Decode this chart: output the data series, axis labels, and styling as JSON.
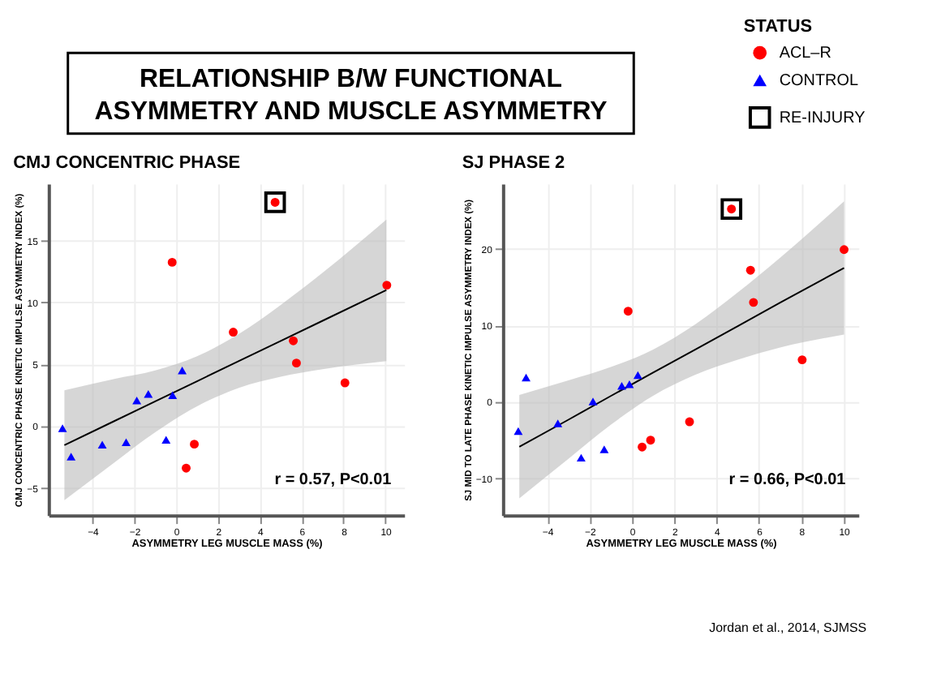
{
  "chart_data": [
    {
      "type": "other",
      "title": "RELATIONSHIP B/W FUNCTIONAL\nASYMMETRY AND MUSCLE ASYMMETRY"
    },
    {
      "type": "scatter",
      "title": "CMJ CONCENTRIC PHASE",
      "xlabel": "ASYMMETRY LEG MUSCLE MASS (%)",
      "ylabel": "CMJ CONCENTRIC PHASE KINETIC IMPULSE ASYMMETRY INDEX (%)",
      "xlim": [
        -6.1,
        10.9
      ],
      "ylim": [
        -7.2,
        19.6
      ],
      "xticks": [
        -4,
        -2,
        0,
        2,
        4,
        6,
        8,
        10
      ],
      "yticks": [
        -5,
        0,
        5,
        10,
        15
      ],
      "grid": true,
      "annotations": [
        "r = 0.57, P<0.01"
      ],
      "series": [
        {
          "type": "line",
          "color": "#000000",
          "x": [
            -5.34,
            -3,
            -1,
            1,
            3,
            5,
            7,
            10.05
          ],
          "values": [
            -1.54,
            0.37,
            2.0,
            3.63,
            5.26,
            6.89,
            8.52,
            11.0
          ],
          "lower": [
            -6.0,
            -3.0,
            -0.5,
            1.6,
            3.1,
            4.0,
            4.6,
            5.25
          ],
          "upper": [
            2.9,
            3.8,
            4.5,
            5.65,
            7.45,
            9.8,
            12.4,
            16.7
          ]
        },
        {
          "color": "#ff0000",
          "marker": "circle",
          "x": [
            -0.19,
            0.87,
            0.48,
            2.73,
            4.73,
            5.6,
            5.75,
            8.07,
            10.07
          ],
          "values": [
            13.25,
            -1.46,
            -3.4,
            7.6,
            18.1,
            6.9,
            5.1,
            3.5,
            11.4
          ]
        },
        {
          "color": "#0000ff",
          "marker": "triangle",
          "x": [
            -5.43,
            -5.02,
            -3.53,
            -2.39,
            -1.88,
            -1.33,
            -0.48,
            -0.17,
            0.29
          ],
          "values": [
            -0.17,
            -2.46,
            -1.5,
            -1.3,
            2.08,
            2.6,
            -1.1,
            2.5,
            4.5
          ]
        },
        {
          "color": "#000000",
          "marker": "square",
          "x": [
            4.73
          ],
          "values": [
            18.1
          ]
        }
      ]
    },
    {
      "type": "scatter",
      "title": "SJ PHASE 2",
      "xlabel": "ASYMMETRY LEG MUSCLE MASS (%)",
      "ylabel": "SJ MID TO LATE PHASE KINETIC IMPULSE ASYMMETRY INDEX (%)",
      "xlim": [
        -6.1,
        10.7
      ],
      "ylim": [
        -14.8,
        28.5
      ],
      "xticks": [
        -4,
        -2,
        0,
        2,
        4,
        6,
        8,
        10
      ],
      "yticks": [
        -10,
        0,
        10,
        20
      ],
      "grid": true,
      "legend": "top right",
      "legend_title": "STATUS",
      "annotations": [
        "r = 0.66, P<0.01",
        "Jordan et al., 2014, SJMSS"
      ],
      "series": [
        {
          "type": "line",
          "color": "#000000",
          "x": [
            -5.32,
            -3,
            -1,
            1,
            3,
            5,
            7,
            10.02
          ],
          "values": [
            -5.86,
            -2.33,
            0.77,
            3.82,
            6.86,
            9.91,
            12.96,
            17.5
          ],
          "lower": [
            -12.6,
            -7.45,
            -3.0,
            0.8,
            3.55,
            5.5,
            7.1,
            8.8
          ],
          "upper": [
            0.9,
            2.8,
            4.55,
            6.85,
            10.15,
            14.3,
            18.85,
            26.2
          ]
        },
        {
          "name": "ACL–R",
          "color": "#ff0000",
          "marker": "circle",
          "x": [
            -0.18,
            0.48,
            0.88,
            2.72,
            4.7,
            5.6,
            5.74,
            8.04,
            10.02
          ],
          "values": [
            11.85,
            -5.9,
            -5.0,
            -2.6,
            25.2,
            17.2,
            13.0,
            5.5,
            19.9
          ]
        },
        {
          "name": "CONTROL",
          "color": "#0000ff",
          "marker": "triangle",
          "x": [
            -5.37,
            -5.0,
            -3.5,
            -2.4,
            -1.84,
            -1.31,
            -0.48,
            -0.12,
            0.28
          ],
          "values": [
            -3.82,
            3.18,
            -2.8,
            -7.3,
            0.06,
            -6.2,
            2.1,
            2.3,
            3.5
          ]
        },
        {
          "name": "RE-INJURY",
          "color": "#000000",
          "marker": "square",
          "x": [
            4.7
          ],
          "values": [
            25.2
          ]
        }
      ]
    }
  ]
}
